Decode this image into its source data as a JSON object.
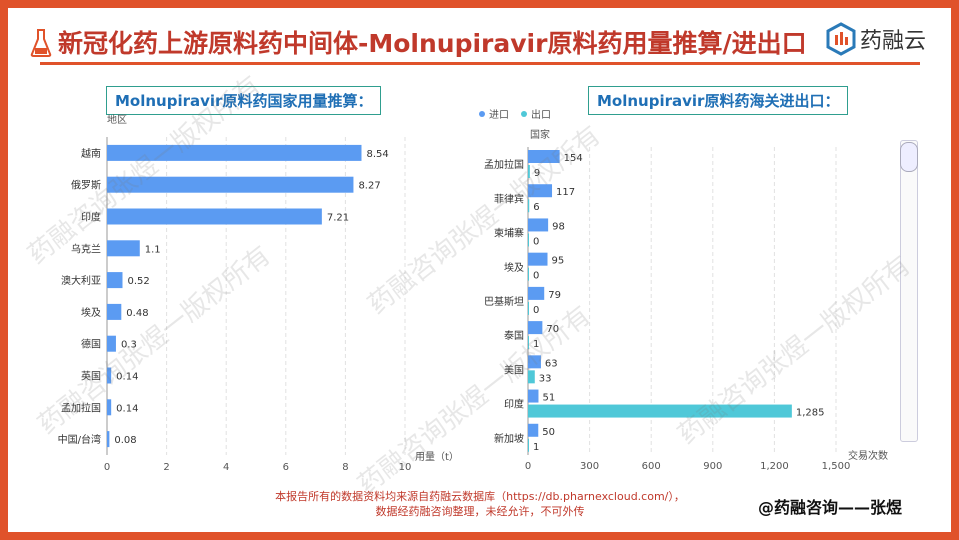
{
  "slide": {
    "title": "新冠化药上游原料药中间体-Molnupiravir原料药用量推算/进出口",
    "brand": "药融云",
    "footer_line1": "本报告所有的数据资料均来源自药融云数据库（https://db.pharnexcloud.com/），",
    "footer_line2": "数据经药融咨询整理，未经允许，不可外传",
    "author": "@药融咨询——张煜",
    "watermark": "药融咨询张煜一版权所有"
  },
  "chart_data": [
    {
      "type": "bar",
      "orientation": "horizontal",
      "panel_title": "Molnupiravir原料药国家用量推算：",
      "ylabel": "地区",
      "xlabel": "用量（t）",
      "categories": [
        "越南",
        "俄罗斯",
        "印度",
        "乌克兰",
        "澳大利亚",
        "埃及",
        "德国",
        "英国",
        "孟加拉国",
        "中国/台湾"
      ],
      "values": [
        8.54,
        8.27,
        7.21,
        1.1,
        0.52,
        0.48,
        0.3,
        0.14,
        0.14,
        0.08
      ],
      "value_labels": [
        "8.54",
        "8.27",
        "7.21",
        "1.1",
        "0.52",
        "0.48",
        "0.3",
        "0.14",
        "0.14",
        "0.08"
      ],
      "xlim": [
        0,
        10
      ],
      "xticks": [
        "0",
        "2",
        "4",
        "6",
        "8",
        "10"
      ],
      "grid": true,
      "color": "#5b9bf2"
    },
    {
      "type": "bar",
      "orientation": "horizontal",
      "panel_title": "Molnupiravir原料药海关进出口：",
      "ylabel": "国家",
      "xlabel": "交易次数",
      "legend_position": "top-left",
      "categories": [
        "孟加拉国",
        "菲律宾",
        "柬埔寨",
        "埃及",
        "巴基斯坦",
        "泰国",
        "美国",
        "印度",
        "新加坡"
      ],
      "series": [
        {
          "name": "进口",
          "color": "#5b9bf2",
          "values": [
            154,
            117,
            98,
            95,
            79,
            70,
            63,
            51,
            50
          ],
          "labels": [
            "154",
            "117",
            "98",
            "95",
            "79",
            "70",
            "63",
            "51",
            "50"
          ]
        },
        {
          "name": "出口",
          "color": "#4fc8d8",
          "values": [
            9,
            6,
            0,
            0,
            0,
            1,
            33,
            1285,
            1
          ],
          "labels": [
            "9",
            "6",
            "0",
            "0",
            "0",
            "1",
            "33",
            "1,285",
            "1"
          ]
        }
      ],
      "xlim": [
        0,
        1500
      ],
      "xticks": [
        "0",
        "300",
        "600",
        "900",
        "1,200",
        "1,500"
      ],
      "grid": true
    }
  ]
}
